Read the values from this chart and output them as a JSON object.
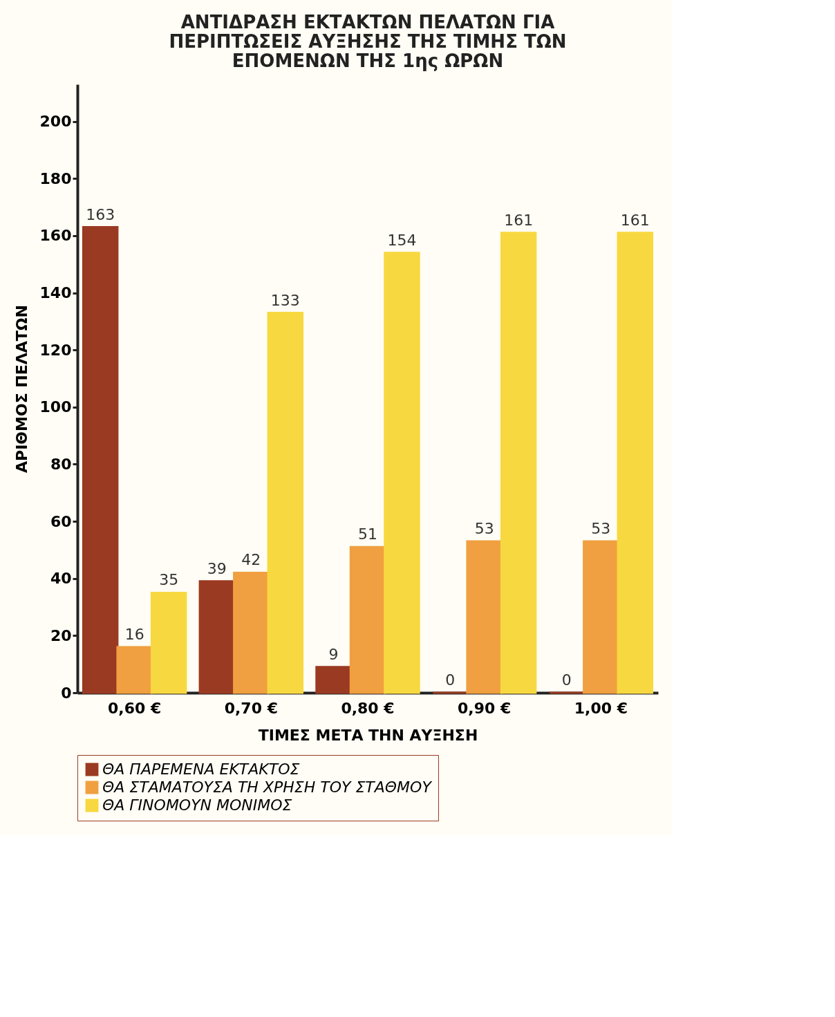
{
  "chart_data": {
    "type": "bar",
    "title": "ΑΝΤΙΔΡΑΣΗ ΕΚΤΑΚΤΩΝ ΠΕΛΑΤΩΝ ΓΙΑ\nΠΕΡΙΠΤΩΣΕΙΣ ΑΥΞΗΣΗΣ ΤΗΣ ΤΙΜΗΣ ΤΩΝ\nΕΠΟΜΕΝΩΝ ΤΗΣ 1ης ΩΡΩΝ",
    "xlabel": "ΤΙΜΕΣ ΜΕΤΑ ΤΗΝ ΑΥΞΗΣΗ",
    "ylabel": "ΑΡΙΘΜΟΣ ΠΕΛΑΤΩΝ",
    "categories": [
      "0,60 €",
      "0,70 €",
      "0,80 €",
      "0,90 €",
      "1,00 €"
    ],
    "series": [
      {
        "name": "ΘΑ ΠΑΡΕΜΕΝΑ ΕΚΤΑΚΤΟΣ",
        "color": "#9b3a22",
        "values": [
          163,
          39,
          9,
          0,
          0
        ]
      },
      {
        "name": "ΘΑ ΣΤΑΜΑΤΟΥΣΑ ΤΗ ΧΡΗΣΗ ΤΟΥ ΣΤΑΘΜΟΥ",
        "color": "#f0a040",
        "values": [
          16,
          42,
          51,
          53,
          53
        ]
      },
      {
        "name": "ΘΑ ΓΙΝΟΜΟΥΝ ΜΟΝΙΜΟΣ",
        "color": "#f8d840",
        "values": [
          35,
          133,
          154,
          161,
          161
        ]
      }
    ],
    "ylim": [
      0,
      213
    ],
    "yticks": [
      0,
      20,
      40,
      60,
      80,
      100,
      120,
      140,
      160,
      180,
      200
    ],
    "data_labels": true,
    "legend": "bottom",
    "grid": false
  }
}
